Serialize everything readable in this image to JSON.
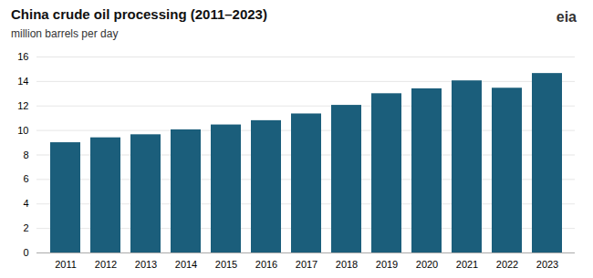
{
  "chart_data": {
    "type": "bar",
    "title": "China crude oil processing (2011–2023)",
    "subtitle": "million barrels per day",
    "annotation": "eia",
    "categories": [
      "2011",
      "2012",
      "2013",
      "2014",
      "2015",
      "2016",
      "2017",
      "2018",
      "2019",
      "2020",
      "2021",
      "2022",
      "2023"
    ],
    "values": [
      9.0,
      9.4,
      9.65,
      10.05,
      10.45,
      10.8,
      11.35,
      12.05,
      13.0,
      13.4,
      14.05,
      13.45,
      14.65
    ],
    "color": "#1b5e7b",
    "ylim": [
      0,
      16
    ],
    "yticks": [
      0,
      2,
      4,
      6,
      8,
      10,
      12,
      14,
      16
    ],
    "grid": true
  }
}
